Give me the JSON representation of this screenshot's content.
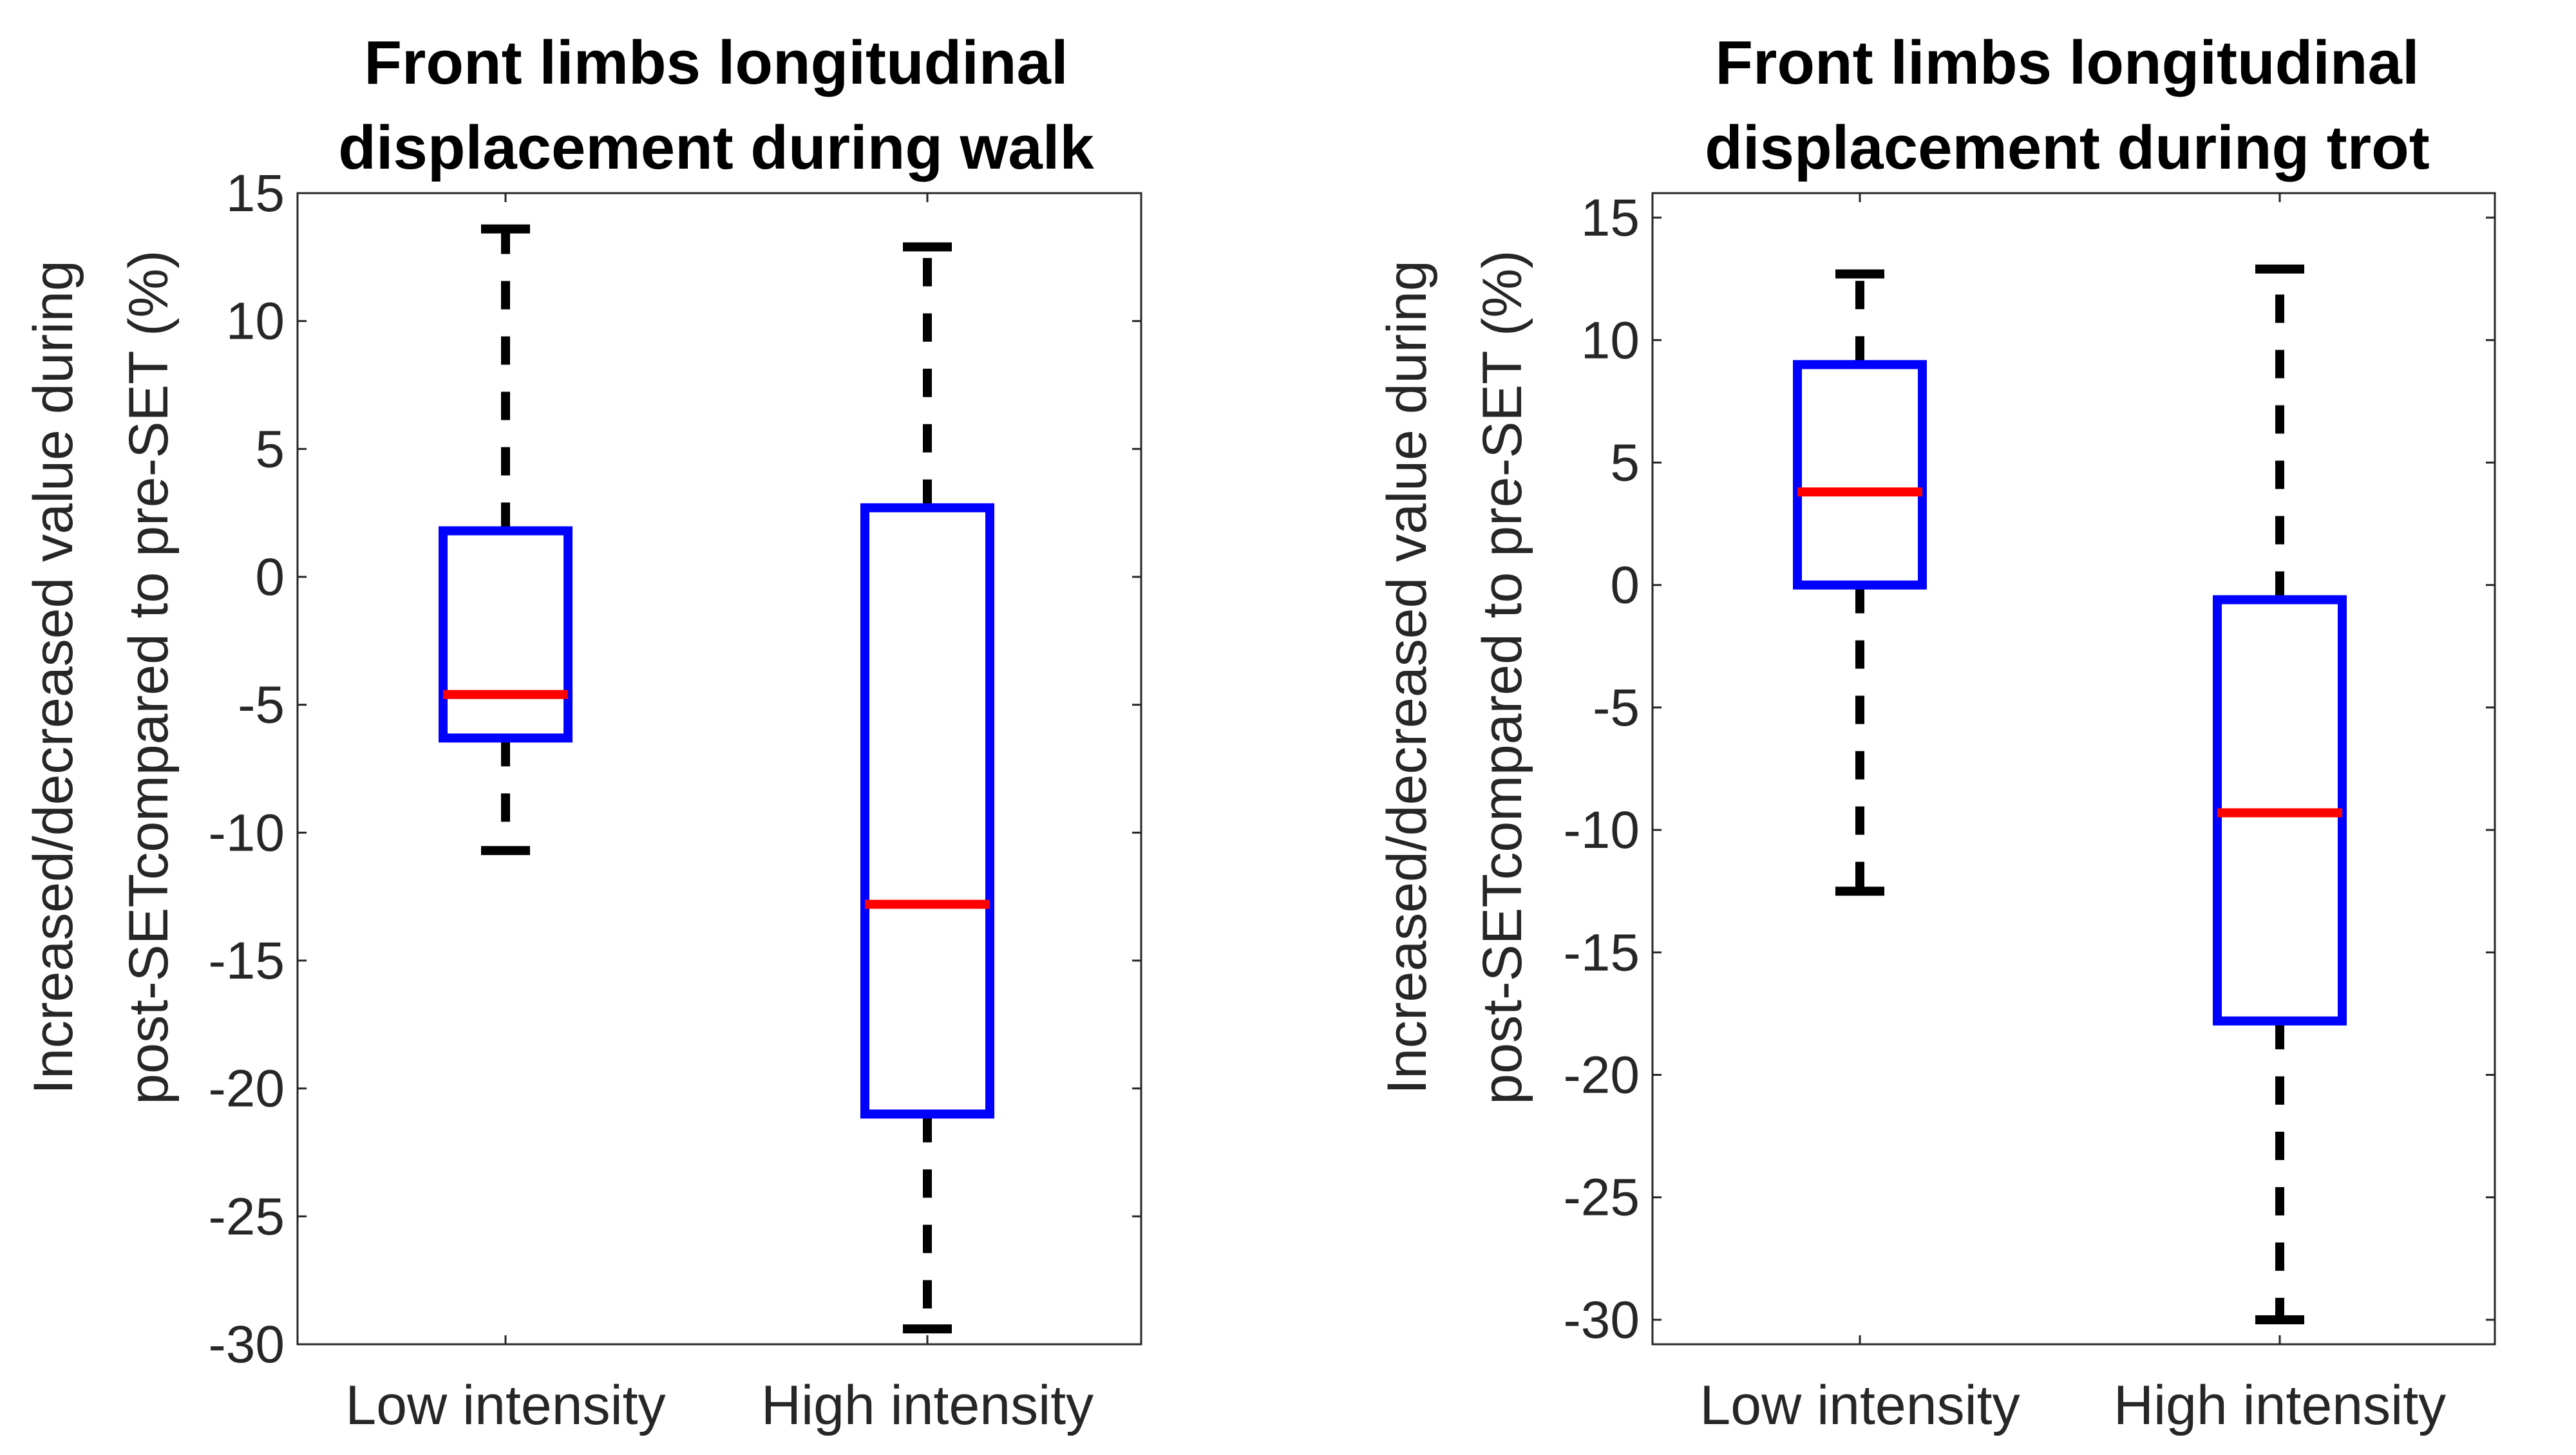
{
  "chart_data": [
    {
      "type": "box",
      "title": [
        "Front limbs longitudinal",
        "displacement during walk"
      ],
      "xlabel": "",
      "ylabel": [
        "Increased/decreased value during",
        "post-SETcompared to pre-SET (%)"
      ],
      "categories": [
        "Low intensity",
        "High intensity"
      ],
      "ylim": [
        -30,
        15
      ],
      "yticks": [
        15,
        10,
        5,
        0,
        -5,
        -10,
        -15,
        -20,
        -25,
        -30
      ],
      "boxes": [
        {
          "category": "Low intensity",
          "whisker_low": -10.7,
          "q1": -6.3,
          "median": -4.6,
          "q3": 1.8,
          "whisker_high": 13.6
        },
        {
          "category": "High intensity",
          "whisker_low": -29.4,
          "q1": -21.0,
          "median": -12.8,
          "q3": 2.7,
          "whisker_high": 12.9
        }
      ],
      "grid": false,
      "colors": {
        "box": "#0000ff",
        "median": "#ff0000",
        "whisker": "#000000"
      }
    },
    {
      "type": "box",
      "title": [
        "Front limbs longitudinal",
        "displacement during trot"
      ],
      "xlabel": "",
      "ylabel": [
        "Increased/decreased value during",
        "post-SETcompared to pre-SET (%)"
      ],
      "categories": [
        "Low intensity",
        "High intensity"
      ],
      "ylim": [
        -31,
        16
      ],
      "yticks": [
        15,
        10,
        5,
        0,
        -5,
        -10,
        -15,
        -20,
        -25,
        -30
      ],
      "boxes": [
        {
          "category": "Low intensity",
          "whisker_low": -12.5,
          "q1": 0.0,
          "median": 3.8,
          "q3": 9.0,
          "whisker_high": 12.7
        },
        {
          "category": "High intensity",
          "whisker_low": -30.0,
          "q1": -17.8,
          "median": -9.3,
          "q3": -0.6,
          "whisker_high": 12.9
        }
      ],
      "grid": false,
      "colors": {
        "box": "#0000ff",
        "median": "#ff0000",
        "whisker": "#000000"
      }
    }
  ]
}
